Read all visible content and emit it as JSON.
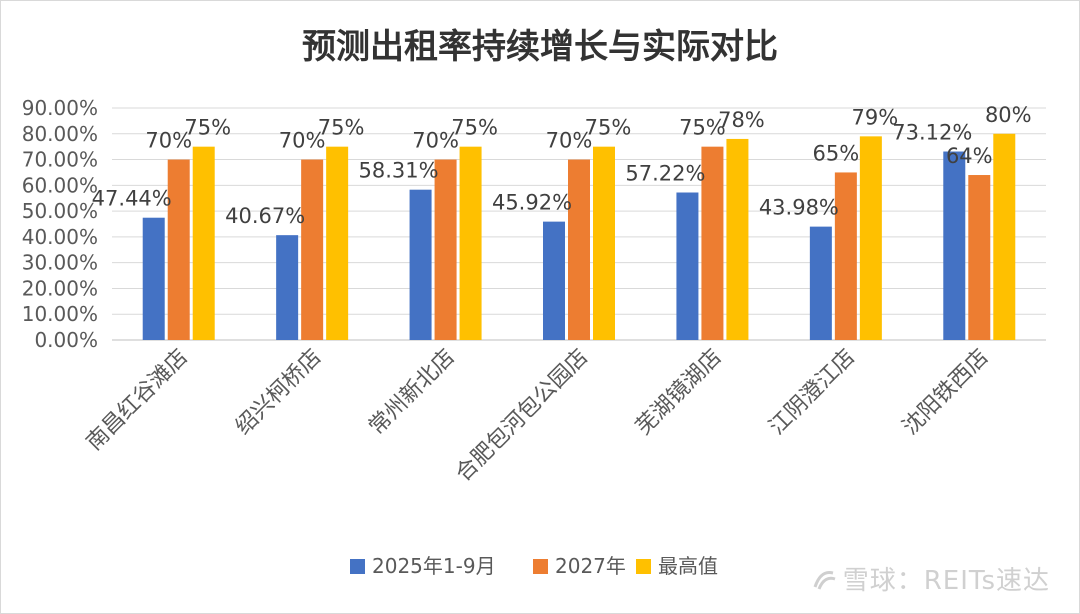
{
  "chart_data": {
    "type": "bar",
    "title": "预测出租率持续增长与实际对比",
    "categories": [
      "南昌红谷滩店",
      "绍兴柯桥店",
      "常州新北店",
      "合肥包河包公园店",
      "芜湖镜湖店",
      "江阴澄江店",
      "沈阳铁西店"
    ],
    "series": [
      {
        "name": "2025年1-9月",
        "color": "#4472C4",
        "values": [
          47.44,
          40.67,
          58.31,
          45.92,
          57.22,
          43.98,
          73.12
        ],
        "labels": [
          "47.44%",
          "40.67%",
          "58.31%",
          "45.92%",
          "57.22%",
          "43.98%",
          "73.12%"
        ]
      },
      {
        "name": "2027年",
        "color": "#ED7D31",
        "values": [
          70,
          70,
          70,
          70,
          75,
          65,
          64
        ],
        "labels": [
          "70%",
          "70%",
          "70%",
          "70%",
          "75%",
          "65%",
          "64%"
        ]
      },
      {
        "name": "最高值",
        "color": "#FFC000",
        "values": [
          75,
          75,
          75,
          75,
          78,
          79,
          80
        ],
        "labels": [
          "75%",
          "75%",
          "75%",
          "75%",
          "78%",
          "79%",
          "80%"
        ]
      }
    ],
    "y_ticks": [
      "0.00%",
      "10.00%",
      "20.00%",
      "30.00%",
      "40.00%",
      "50.00%",
      "60.00%",
      "70.00%",
      "80.00%",
      "90.00%"
    ],
    "ylim": [
      0,
      90
    ],
    "grid": true,
    "legend_position": "bottom"
  },
  "watermark": "雪球：REITs速达"
}
